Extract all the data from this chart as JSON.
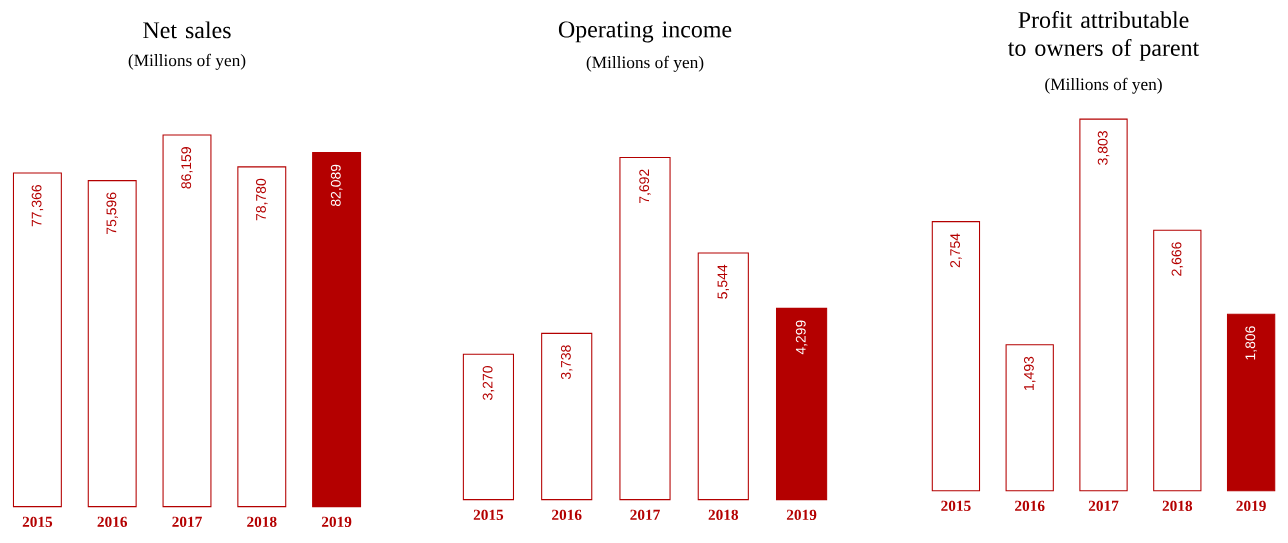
{
  "chart_data": [
    {
      "type": "bar",
      "title": "Net sales",
      "subtitle": "(Millions of yen)",
      "categories": [
        "2015",
        "2016",
        "2017",
        "2018",
        "2019"
      ],
      "values": [
        77366,
        75596,
        86159,
        78780,
        82089
      ],
      "value_labels": [
        "77,366",
        "75,596",
        "86,159",
        "78,780",
        "82,089"
      ],
      "color": "#b40000",
      "colors": [
        "#ffffff",
        "#ffffff",
        "#ffffff",
        "#ffffff",
        "#b40000"
      ],
      "tick_labels": "x"
    },
    {
      "type": "bar",
      "title": "Operating income",
      "subtitle": "(Millions of yen)",
      "categories": [
        "2015",
        "2016",
        "2017",
        "2018",
        "2019"
      ],
      "values": [
        3270,
        3738,
        7692,
        5544,
        4299
      ],
      "value_labels": [
        "3,270",
        "3,738",
        "7,692",
        "5,544",
        "4,299"
      ],
      "color": "#b40000",
      "colors": [
        "#ffffff",
        "#ffffff",
        "#ffffff",
        "#ffffff",
        "#b40000"
      ],
      "tick_labels": "x"
    },
    {
      "type": "bar",
      "title": "Profit  attributable to owners  of parent",
      "subtitle": "(Millions of yen)",
      "categories": [
        "2015",
        "2016",
        "2017",
        "2018",
        "2019"
      ],
      "values": [
        2754,
        1493,
        3803,
        2666,
        1806
      ],
      "value_labels": [
        "2,754",
        "1,493",
        "3,803",
        "2,666",
        "1,806"
      ],
      "color": "#b40000",
      "colors": [
        "#ffffff",
        "#ffffff",
        "#ffffff",
        "#ffffff",
        "#b40000"
      ],
      "tick_labels": "x"
    }
  ]
}
